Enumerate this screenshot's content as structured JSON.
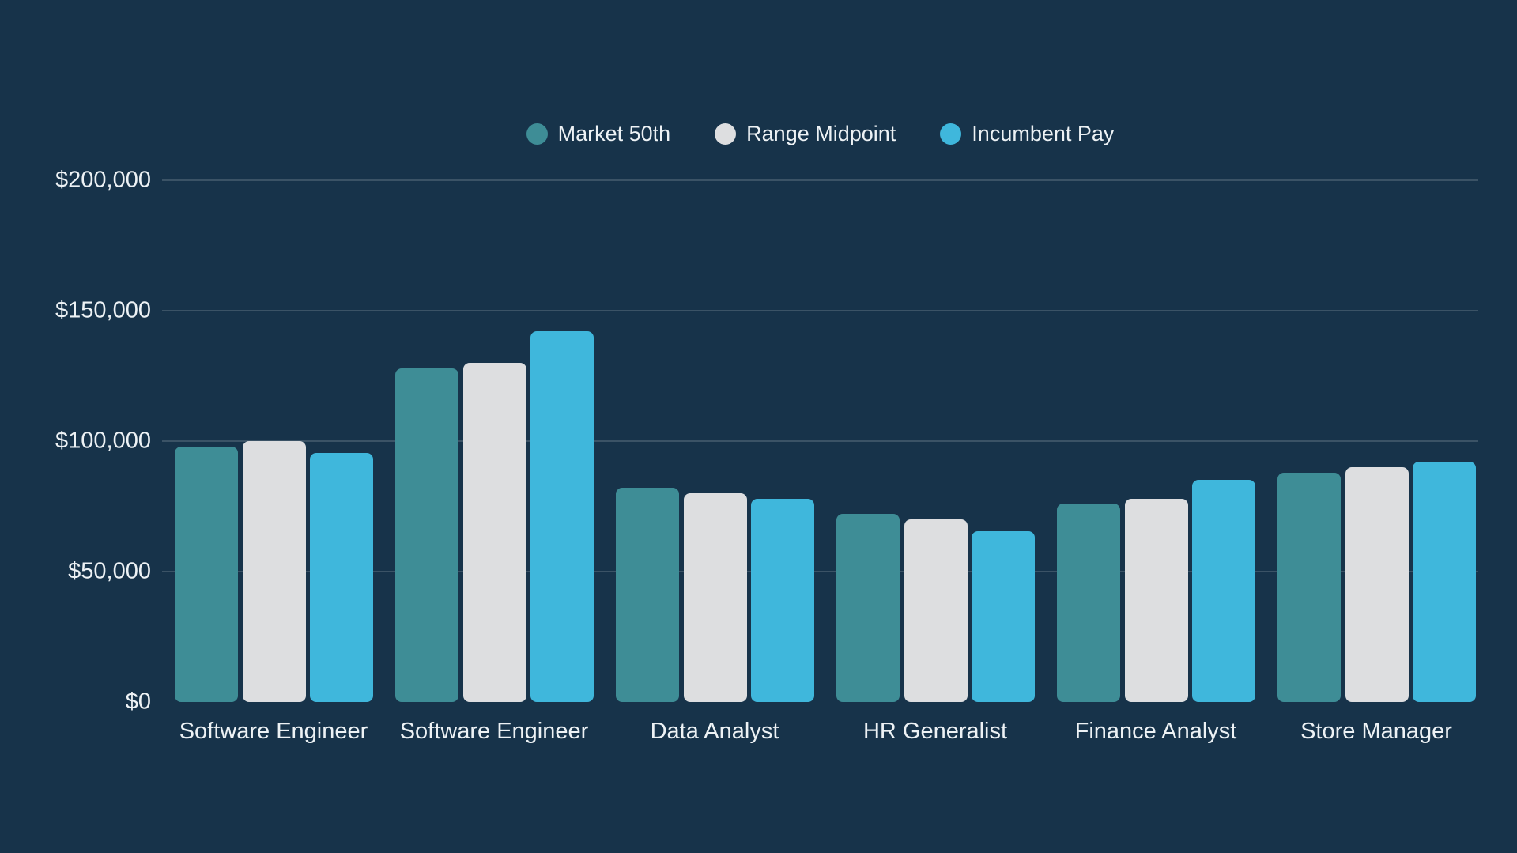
{
  "colors": {
    "background": "#17334A",
    "gridline": "rgba(237,242,245,0.17)",
    "text": "#EDF2F5",
    "market_50th": "#3E8D96",
    "range_midpoint": "#DDDEE0",
    "incumbent_pay": "#3FB7DC"
  },
  "chart_data": {
    "type": "bar",
    "title": "",
    "xlabel": "",
    "ylabel": "",
    "categories": [
      "Software Engineer",
      "Software Engineer",
      "Data Analyst",
      "HR Generalist",
      "Finance Analyst",
      "Store Manager"
    ],
    "series": [
      {
        "name": "Market 50th",
        "color": "#3E8D96",
        "values": [
          98000,
          128000,
          82000,
          72000,
          76000,
          88000
        ]
      },
      {
        "name": "Range Midpoint",
        "color": "#DDDEE0",
        "values": [
          100000,
          130000,
          80000,
          70000,
          78000,
          90000
        ]
      },
      {
        "name": "Incumbent Pay",
        "color": "#3FB7DC",
        "values": [
          95500,
          142000,
          78000,
          65500,
          85000,
          92000
        ]
      }
    ],
    "ylim": [
      0,
      200000
    ],
    "yticks": [
      {
        "value": 0,
        "label": "$0"
      },
      {
        "value": 50000,
        "label": "$50,000"
      },
      {
        "value": 100000,
        "label": "$100,000"
      },
      {
        "value": 150000,
        "label": "$150,000"
      },
      {
        "value": 200000,
        "label": "$200,000"
      }
    ],
    "grid": true,
    "legend_position": "top"
  }
}
